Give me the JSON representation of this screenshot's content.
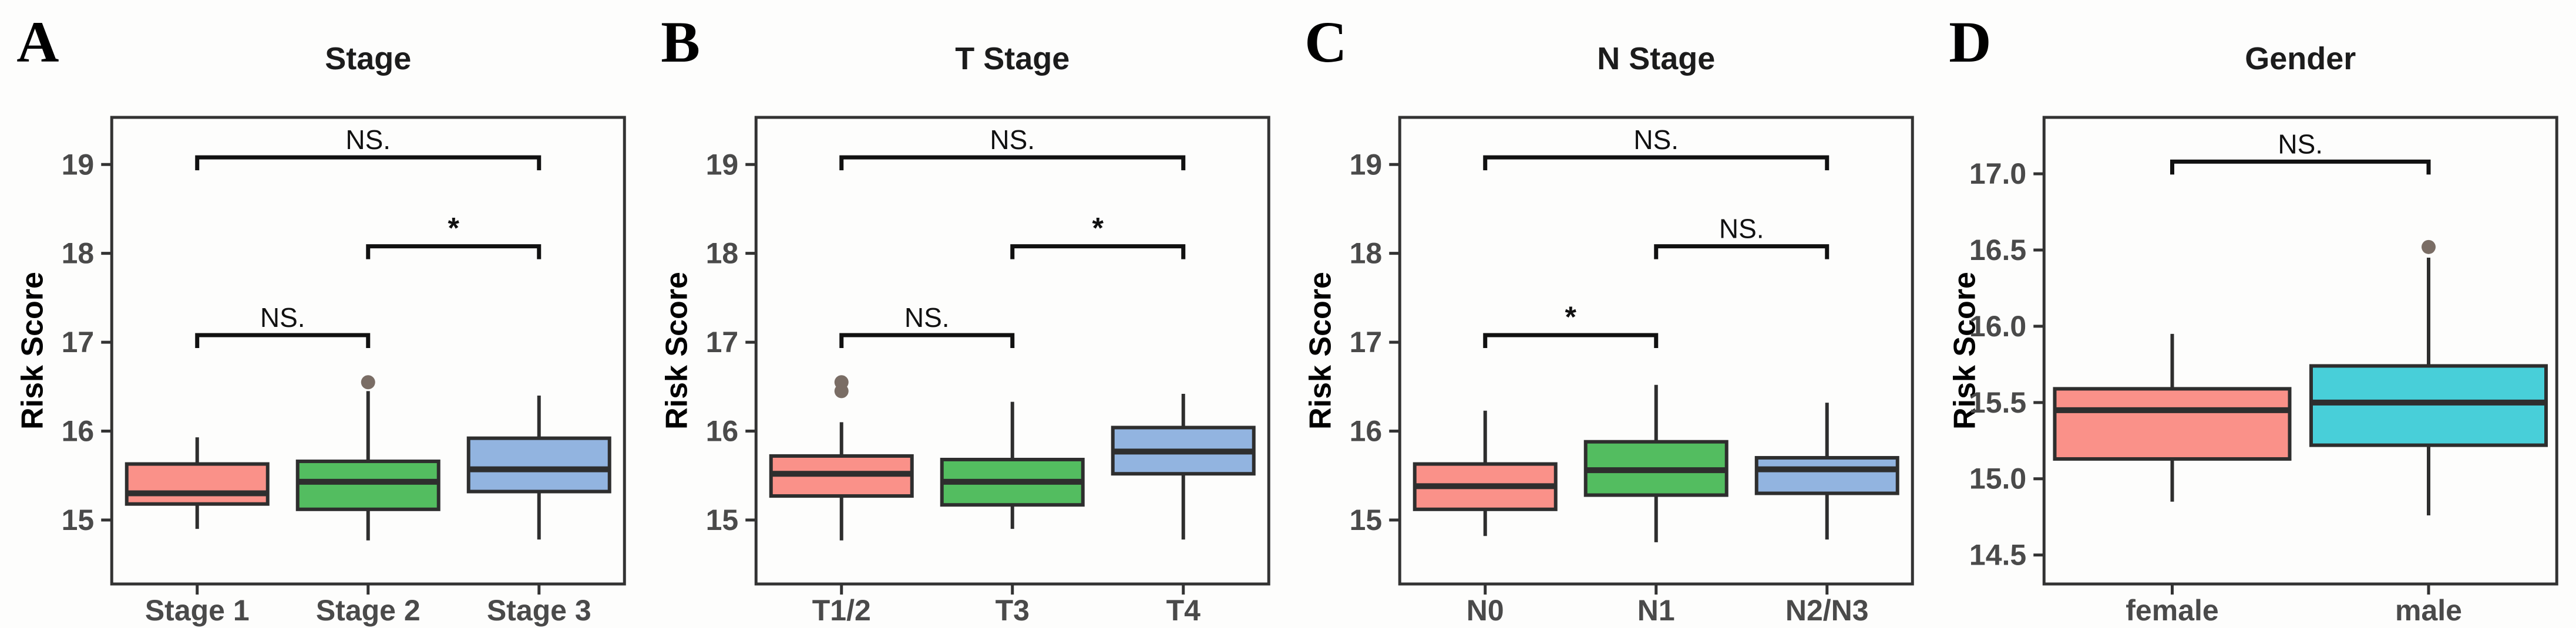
{
  "figure": {
    "type": "boxplot-figure",
    "ylabel": "Risk Score",
    "style": {
      "box_stroke": "#2E2E2E",
      "median_stroke": "#2E2E2E",
      "whisker_stroke": "#2E2E2E",
      "outlier_fill": "#7A6D65",
      "axis_color": "#333333",
      "tick_label_color": "#4A4A4A",
      "title_color": "#1C1C1C",
      "panel_letter_color": "#000000",
      "bracket_color": "#111111",
      "background": "#FDFDFC"
    }
  },
  "chart_data": [
    {
      "type": "box",
      "panel_label": "A",
      "title": "Stage",
      "ylabel": "Risk Score",
      "categories": [
        "Stage 1",
        "Stage 2",
        "Stage 3"
      ],
      "ytick_labels": [
        "15",
        "16",
        "17",
        "18",
        "19"
      ],
      "ytick_values": [
        15,
        16,
        17,
        18,
        19
      ],
      "ylim": [
        14.28,
        19.53
      ],
      "grid": false,
      "boxes": [
        {
          "category": "Stage 1",
          "min": 14.9,
          "q1": 15.18,
          "median": 15.3,
          "q3": 15.63,
          "max": 15.93,
          "outliers": [],
          "fill": "#FA9189"
        },
        {
          "category": "Stage 2",
          "min": 14.77,
          "q1": 15.12,
          "median": 15.43,
          "q3": 15.66,
          "max": 16.45,
          "outliers": [
            16.55
          ],
          "fill": "#53BD60"
        },
        {
          "category": "Stage 3",
          "min": 14.78,
          "q1": 15.32,
          "median": 15.57,
          "q3": 15.92,
          "max": 16.4,
          "outliers": [],
          "fill": "#92B4E0"
        }
      ],
      "comparisons": [
        {
          "groups": [
            1,
            2
          ],
          "label": "NS.",
          "y": 17.08
        },
        {
          "groups": [
            2,
            3
          ],
          "label": "*",
          "y": 18.08
        },
        {
          "groups": [
            1,
            3
          ],
          "label": "NS.",
          "y": 19.08
        }
      ]
    },
    {
      "type": "box",
      "panel_label": "B",
      "title": "T Stage",
      "ylabel": "Risk Score",
      "categories": [
        "T1/2",
        "T3",
        "T4"
      ],
      "ytick_labels": [
        "15",
        "16",
        "17",
        "18",
        "19"
      ],
      "ytick_values": [
        15,
        16,
        17,
        18,
        19
      ],
      "ylim": [
        14.28,
        19.53
      ],
      "grid": false,
      "boxes": [
        {
          "category": "T1/2",
          "min": 14.77,
          "q1": 15.27,
          "median": 15.52,
          "q3": 15.72,
          "max": 16.1,
          "outliers": [
            16.45,
            16.55
          ],
          "fill": "#FA9189"
        },
        {
          "category": "T3",
          "min": 14.9,
          "q1": 15.17,
          "median": 15.43,
          "q3": 15.68,
          "max": 16.33,
          "outliers": [],
          "fill": "#53BD60"
        },
        {
          "category": "T4",
          "min": 14.78,
          "q1": 15.52,
          "median": 15.77,
          "q3": 16.04,
          "max": 16.42,
          "outliers": [],
          "fill": "#92B4E0"
        }
      ],
      "comparisons": [
        {
          "groups": [
            1,
            2
          ],
          "label": "NS.",
          "y": 17.08
        },
        {
          "groups": [
            2,
            3
          ],
          "label": "*",
          "y": 18.08
        },
        {
          "groups": [
            1,
            3
          ],
          "label": "NS.",
          "y": 19.08
        }
      ]
    },
    {
      "type": "box",
      "panel_label": "C",
      "title": "N Stage",
      "ylabel": "Risk Score",
      "categories": [
        "N0",
        "N1",
        "N2/N3"
      ],
      "ytick_labels": [
        "15",
        "16",
        "17",
        "18",
        "19"
      ],
      "ytick_values": [
        15,
        16,
        17,
        18,
        19
      ],
      "ylim": [
        14.28,
        19.53
      ],
      "grid": false,
      "boxes": [
        {
          "category": "N0",
          "min": 14.82,
          "q1": 15.12,
          "median": 15.38,
          "q3": 15.63,
          "max": 16.23,
          "outliers": [],
          "fill": "#FA9189"
        },
        {
          "category": "N1",
          "min": 14.75,
          "q1": 15.28,
          "median": 15.56,
          "q3": 15.88,
          "max": 16.52,
          "outliers": [],
          "fill": "#53BD60"
        },
        {
          "category": "N2/N3",
          "min": 14.78,
          "q1": 15.3,
          "median": 15.57,
          "q3": 15.7,
          "max": 16.32,
          "outliers": [],
          "fill": "#92B4E0"
        }
      ],
      "comparisons": [
        {
          "groups": [
            1,
            2
          ],
          "label": "*",
          "y": 17.08
        },
        {
          "groups": [
            2,
            3
          ],
          "label": "NS.",
          "y": 18.08
        },
        {
          "groups": [
            1,
            3
          ],
          "label": "NS.",
          "y": 19.08
        }
      ]
    },
    {
      "type": "box",
      "panel_label": "D",
      "title": "Gender",
      "ylabel": "Risk Score",
      "categories": [
        "female",
        "male"
      ],
      "ytick_labels": [
        "14.5",
        "15.0",
        "15.5",
        "16.0",
        "16.5",
        "17.0"
      ],
      "ytick_values": [
        14.5,
        15.0,
        15.5,
        16.0,
        16.5,
        17.0
      ],
      "ylim": [
        14.31,
        17.37
      ],
      "grid": false,
      "boxes": [
        {
          "category": "female",
          "min": 14.85,
          "q1": 15.13,
          "median": 15.45,
          "q3": 15.59,
          "max": 15.95,
          "outliers": [],
          "fill": "#FA9189"
        },
        {
          "category": "male",
          "min": 14.76,
          "q1": 15.22,
          "median": 15.5,
          "q3": 15.74,
          "max": 16.45,
          "outliers": [
            16.52
          ],
          "fill": "#48CFD9"
        }
      ],
      "comparisons": [
        {
          "groups": [
            1,
            2
          ],
          "label": "NS.",
          "y": 17.08
        }
      ]
    }
  ]
}
